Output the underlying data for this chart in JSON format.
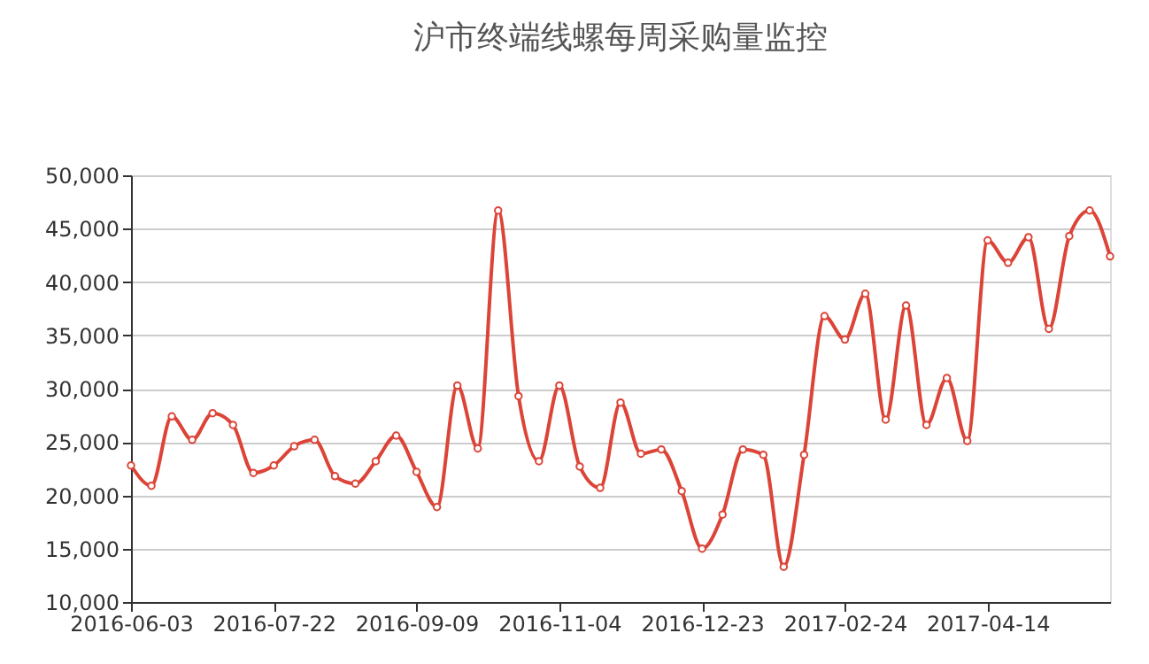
{
  "chart_data": {
    "type": "line",
    "title": "沪市终端线螺每周采购量监控",
    "categories": [
      "2016-06-03",
      null,
      null,
      null,
      null,
      null,
      null,
      "2016-07-22",
      null,
      null,
      null,
      null,
      null,
      null,
      "2016-09-09",
      null,
      null,
      null,
      null,
      null,
      null,
      "2016-11-04",
      null,
      null,
      null,
      null,
      null,
      null,
      "2016-12-23",
      null,
      null,
      null,
      null,
      null,
      null,
      "2017-02-24",
      null,
      null,
      null,
      null,
      null,
      null,
      "2017-04-14",
      null,
      null,
      null,
      null,
      null,
      null
    ],
    "series": [
      {
        "color": "#dc4438",
        "values": [
          22800,
          20900,
          27400,
          25200,
          27700,
          26600,
          22100,
          22800,
          24600,
          25200,
          21800,
          21100,
          23200,
          25600,
          22200,
          18900,
          30300,
          24400,
          46700,
          29300,
          23200,
          30300,
          22700,
          20700,
          28700,
          23900,
          24300,
          20400,
          15000,
          18200,
          24300,
          23800,
          13300,
          23800,
          36800,
          34600,
          38900,
          27100,
          37800,
          26600,
          31000,
          25100,
          43900,
          41800,
          44200,
          35600,
          44300,
          46700,
          42400
        ]
      }
    ],
    "ylim": [
      10000,
      50000
    ],
    "yticks": [
      {
        "value": 10000,
        "label": "10,000"
      },
      {
        "value": 15000,
        "label": "15,000"
      },
      {
        "value": 20000,
        "label": "20,000"
      },
      {
        "value": 25000,
        "label": "25,000"
      },
      {
        "value": 30000,
        "label": "30,000"
      },
      {
        "value": 35000,
        "label": "35,000"
      },
      {
        "value": 40000,
        "label": "40,000"
      },
      {
        "value": 45000,
        "label": "45,000"
      },
      {
        "value": 50000,
        "label": "50,000"
      }
    ],
    "grid": "y",
    "marker": "circle",
    "line_style": "solid"
  }
}
